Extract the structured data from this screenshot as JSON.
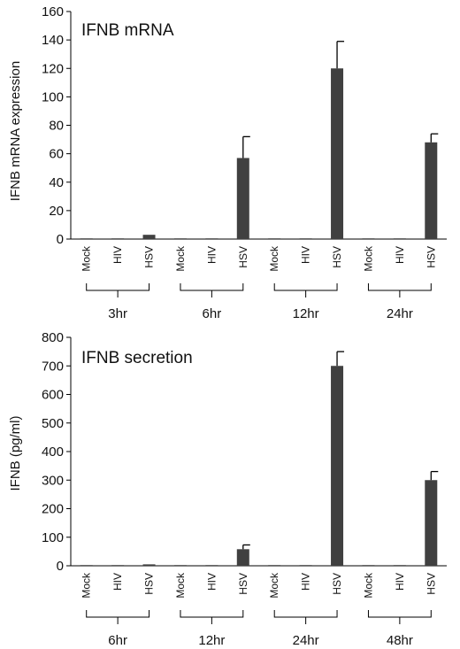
{
  "chart_data": [
    {
      "type": "bar",
      "title": "IFNB mRNA",
      "ylabel": "IFNB mRNA  expression",
      "xlabel": "",
      "ylim": [
        0,
        160
      ],
      "yticks": [
        0,
        20,
        40,
        60,
        80,
        100,
        120,
        140,
        160
      ],
      "categories": [
        "Mock",
        "HIV",
        "HSV",
        "Mock",
        "HIV",
        "HSV",
        "Mock",
        "HIV",
        "HSV",
        "Mock",
        "HIV",
        "HSV"
      ],
      "values": [
        0,
        0,
        3,
        0,
        0,
        57,
        0,
        0,
        120,
        0,
        0,
        68
      ],
      "errors": [
        0,
        0,
        0,
        0,
        0,
        15,
        0,
        0,
        19,
        0,
        0,
        6
      ],
      "groups": [
        "3hr",
        "6hr",
        "12hr",
        "24hr"
      ],
      "grid": false,
      "bar_color": "#404040"
    },
    {
      "type": "bar",
      "title": "IFNB secretion",
      "ylabel": "IFNB (pg/ml)",
      "xlabel": "",
      "ylim": [
        0,
        800
      ],
      "yticks": [
        0,
        100,
        200,
        300,
        400,
        500,
        600,
        700,
        800
      ],
      "categories": [
        "Mock",
        "HIV",
        "HSV",
        "Mock",
        "HIV",
        "HSV",
        "Mock",
        "HIV",
        "HSV",
        "Mock",
        "HIV",
        "HSV"
      ],
      "values": [
        0,
        0,
        5,
        0,
        0,
        58,
        0,
        0,
        700,
        0,
        0,
        300
      ],
      "errors": [
        0,
        0,
        0,
        0,
        0,
        15,
        0,
        0,
        50,
        0,
        0,
        30
      ],
      "groups": [
        "6hr",
        "12hr",
        "24hr",
        "48hr"
      ],
      "grid": false,
      "bar_color": "#404040"
    }
  ]
}
